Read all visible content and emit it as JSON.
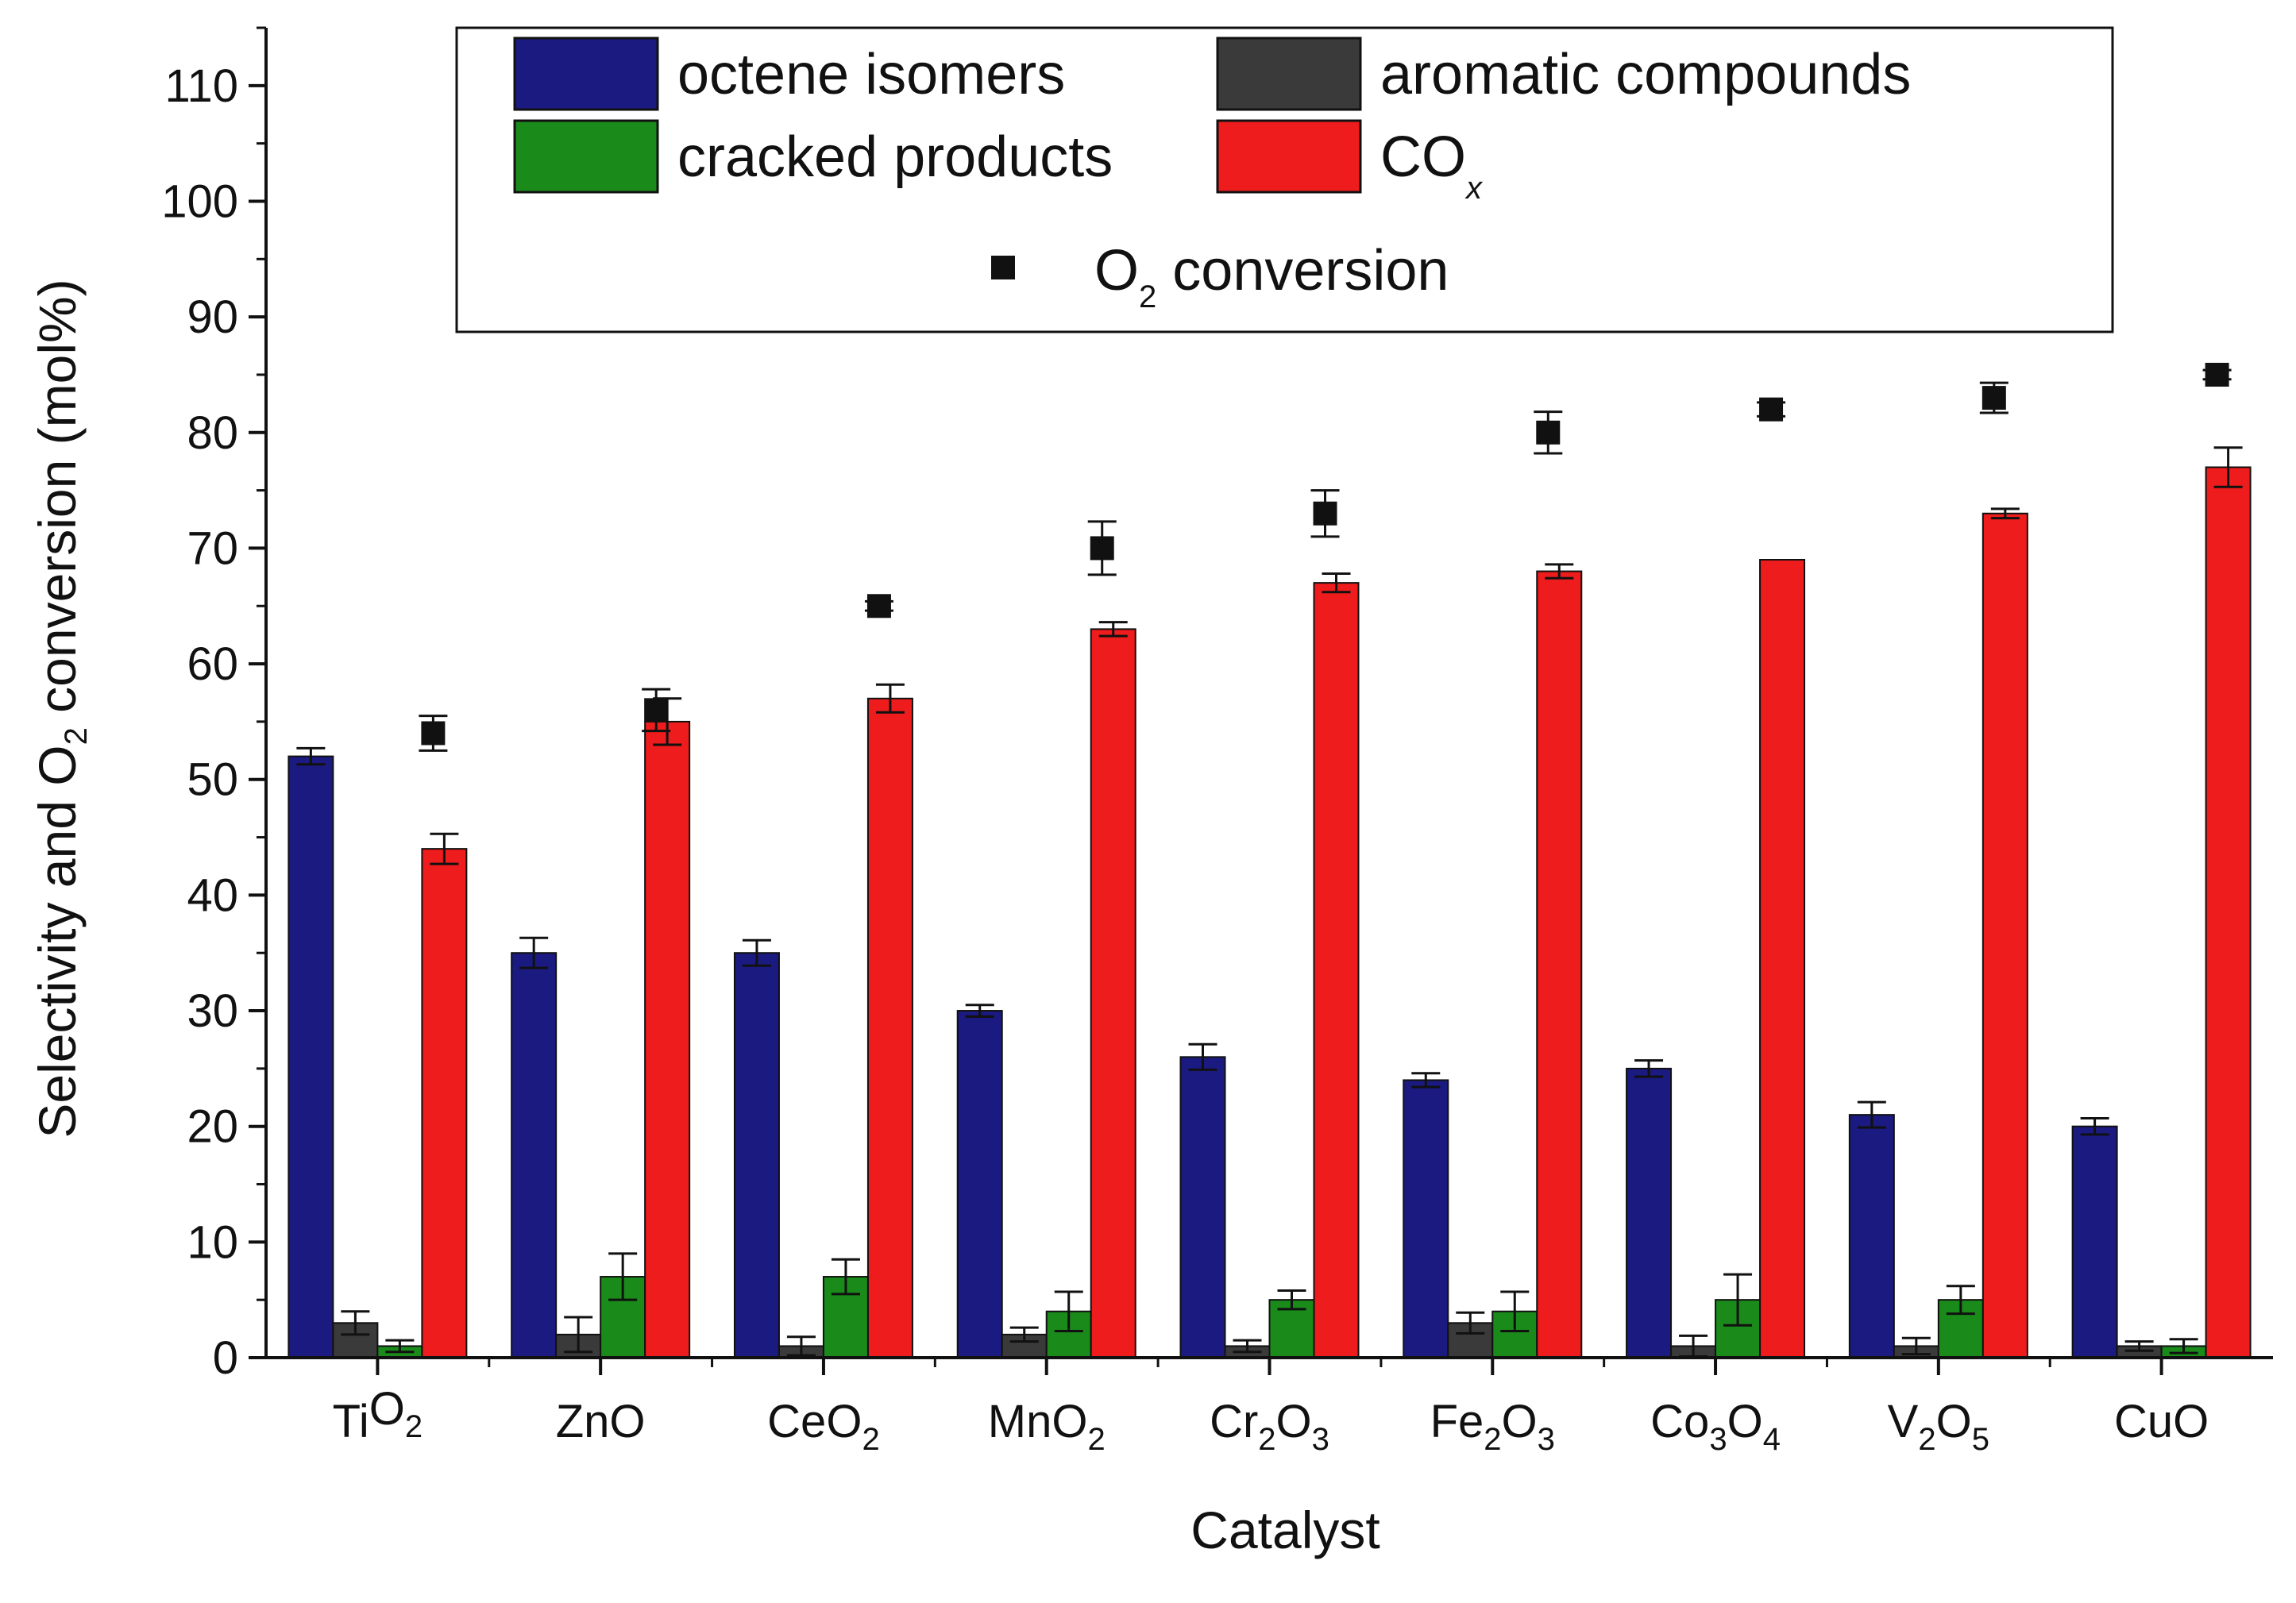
{
  "chart_data": {
    "type": "bar",
    "title": "",
    "xlabel": "Catalyst",
    "ylabel": {
      "pre": "Selectivity and O",
      "sub": "2",
      "post": " conversion (mol%)"
    },
    "ylim": [
      0,
      115
    ],
    "yticks": [
      0,
      10,
      20,
      30,
      40,
      50,
      60,
      70,
      80,
      90,
      100,
      110
    ],
    "categories": [
      {
        "base": "TiO",
        "parts": [
          [
            "Ti",
            ""
          ],
          [
            "O",
            "2"
          ]
        ]
      },
      {
        "base": "ZnO",
        "parts": [
          [
            "ZnO",
            ""
          ]
        ]
      },
      {
        "base": "CeO",
        "parts": [
          [
            "CeO",
            "2"
          ]
        ]
      },
      {
        "base": "MnO",
        "parts": [
          [
            "MnO",
            "2"
          ]
        ]
      },
      {
        "base": "Cr2O3",
        "parts": [
          [
            "Cr",
            "2"
          ],
          [
            "O",
            "3"
          ]
        ]
      },
      {
        "base": "Fe2O3",
        "parts": [
          [
            "Fe",
            "2"
          ],
          [
            "O",
            "3"
          ]
        ]
      },
      {
        "base": "Co3O4",
        "parts": [
          [
            "Co",
            "3"
          ],
          [
            "O",
            "4"
          ]
        ]
      },
      {
        "base": "V2O5",
        "parts": [
          [
            "V",
            "2"
          ],
          [
            "O",
            "5"
          ]
        ]
      },
      {
        "base": "CuO",
        "parts": [
          [
            "CuO",
            ""
          ]
        ]
      }
    ],
    "series": [
      {
        "name": "octene isomers",
        "color": "#1a1a80",
        "values": [
          52,
          35,
          35,
          30,
          26,
          24,
          25,
          21,
          20
        ],
        "errors": [
          0.7,
          1.3,
          1.1,
          0.5,
          1.1,
          0.6,
          0.7,
          1.1,
          0.7
        ]
      },
      {
        "name": "aromatic compounds",
        "color": "#3a3a3a",
        "values": [
          3,
          2,
          1,
          2,
          1,
          3,
          1,
          1,
          1
        ],
        "errors": [
          1.0,
          1.5,
          0.8,
          0.6,
          0.5,
          0.9,
          0.9,
          0.7,
          0.4
        ]
      },
      {
        "name": "cracked products",
        "color": "#1a8a1a",
        "values": [
          1,
          7,
          7,
          4,
          5,
          4,
          5,
          5,
          1
        ],
        "errors": [
          0.5,
          2.0,
          1.5,
          1.7,
          0.8,
          1.7,
          2.2,
          1.2,
          0.6
        ]
      },
      {
        "name": "CO",
        "name_sub": "x",
        "color": "#ee1c1c",
        "values": [
          44,
          55,
          57,
          63,
          67,
          68,
          69,
          73,
          77
        ],
        "errors": [
          1.3,
          2.0,
          1.2,
          0.6,
          0.8,
          0.6,
          0,
          0.4,
          1.7
        ]
      }
    ],
    "scatter": {
      "name_pre": "O",
      "name_sub": "2",
      "name_post": " conversion",
      "color": "#111111",
      "values": [
        54,
        56,
        65,
        70,
        73,
        80,
        82,
        83,
        85
      ],
      "errors": [
        1.5,
        1.8,
        0.4,
        2.3,
        2.0,
        1.8,
        0.6,
        1.3,
        0.4
      ]
    },
    "legend_position": "top-center"
  }
}
